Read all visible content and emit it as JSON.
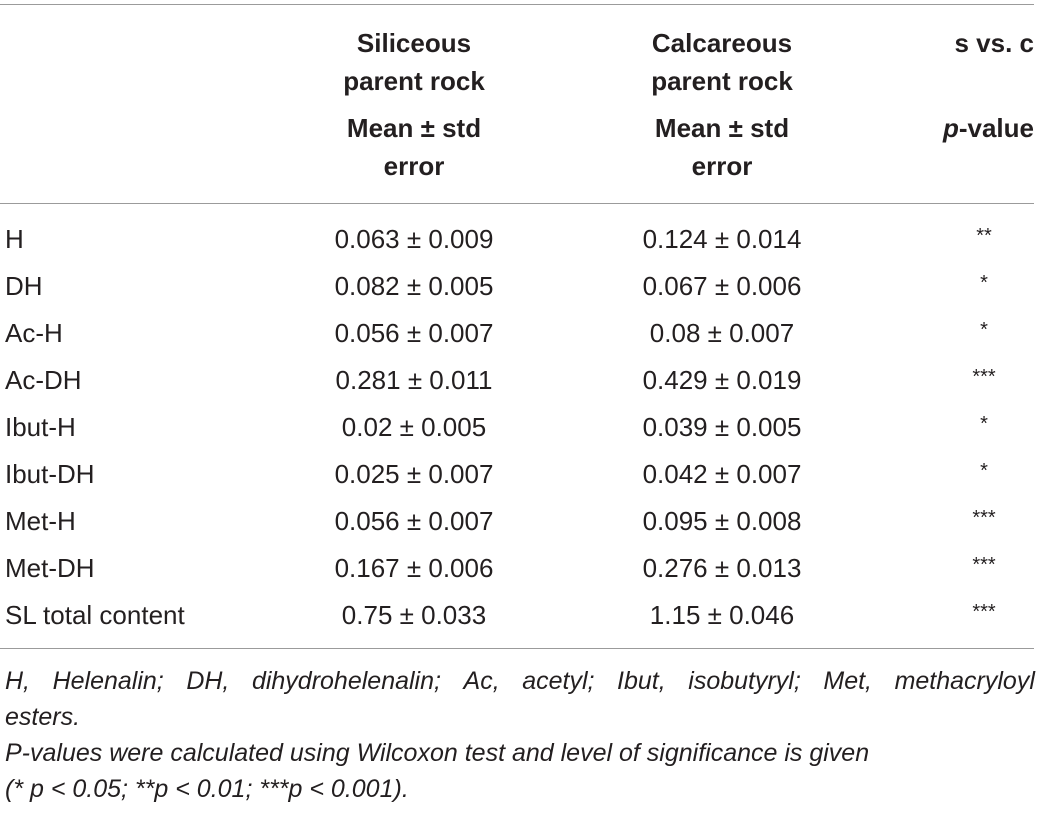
{
  "header": {
    "siliceous_line1": "Siliceous",
    "siliceous_line2": "parent rock",
    "siliceous_stat1": "Mean ± std",
    "siliceous_stat2": "error",
    "calcareous_line1": "Calcareous",
    "calcareous_line2": "parent rock",
    "calcareous_stat1": "Mean ± std",
    "calcareous_stat2": "error",
    "comparison": "s vs. c",
    "pvalue_italic": "p",
    "pvalue_rest": "-value"
  },
  "rows": [
    {
      "label": "H",
      "siliceous": "0.063 ± 0.009",
      "calcareous": "0.124 ± 0.014",
      "sig": "**"
    },
    {
      "label": "DH",
      "siliceous": "0.082 ± 0.005",
      "calcareous": "0.067 ± 0.006",
      "sig": "*"
    },
    {
      "label": "Ac-H",
      "siliceous": "0.056 ± 0.007",
      "calcareous": "0.08 ± 0.007",
      "sig": "*"
    },
    {
      "label": "Ac-DH",
      "siliceous": "0.281 ± 0.011",
      "calcareous": "0.429 ± 0.019",
      "sig": "***"
    },
    {
      "label": "Ibut-H",
      "siliceous": "0.02 ± 0.005",
      "calcareous": "0.039 ± 0.005",
      "sig": "*"
    },
    {
      "label": "Ibut-DH",
      "siliceous": "0.025 ± 0.007",
      "calcareous": "0.042 ± 0.007",
      "sig": "*"
    },
    {
      "label": "Met-H",
      "siliceous": "0.056 ± 0.007",
      "calcareous": "0.095 ± 0.008",
      "sig": "***"
    },
    {
      "label": "Met-DH",
      "siliceous": "0.167 ± 0.006",
      "calcareous": "0.276 ± 0.013",
      "sig": "***"
    },
    {
      "label": "SL total content",
      "siliceous": "0.75 ± 0.033",
      "calcareous": "1.15 ± 0.046",
      "sig": "***"
    }
  ],
  "footnotes": {
    "abbrev_words": [
      "H,",
      "Helenalin;",
      "DH,",
      "dihydrohelenalin;",
      "Ac,",
      "acetyl;",
      "Ibut,",
      "isobutyryl;",
      "Met,",
      "methacryloyl"
    ],
    "abbrev_line2": "esters.",
    "pvalue_line1": "P-values were calculated using Wilcoxon test and level of significance is given",
    "pvalue_line2": "(* p < 0.05; **p < 0.01; ***p < 0.001)."
  }
}
